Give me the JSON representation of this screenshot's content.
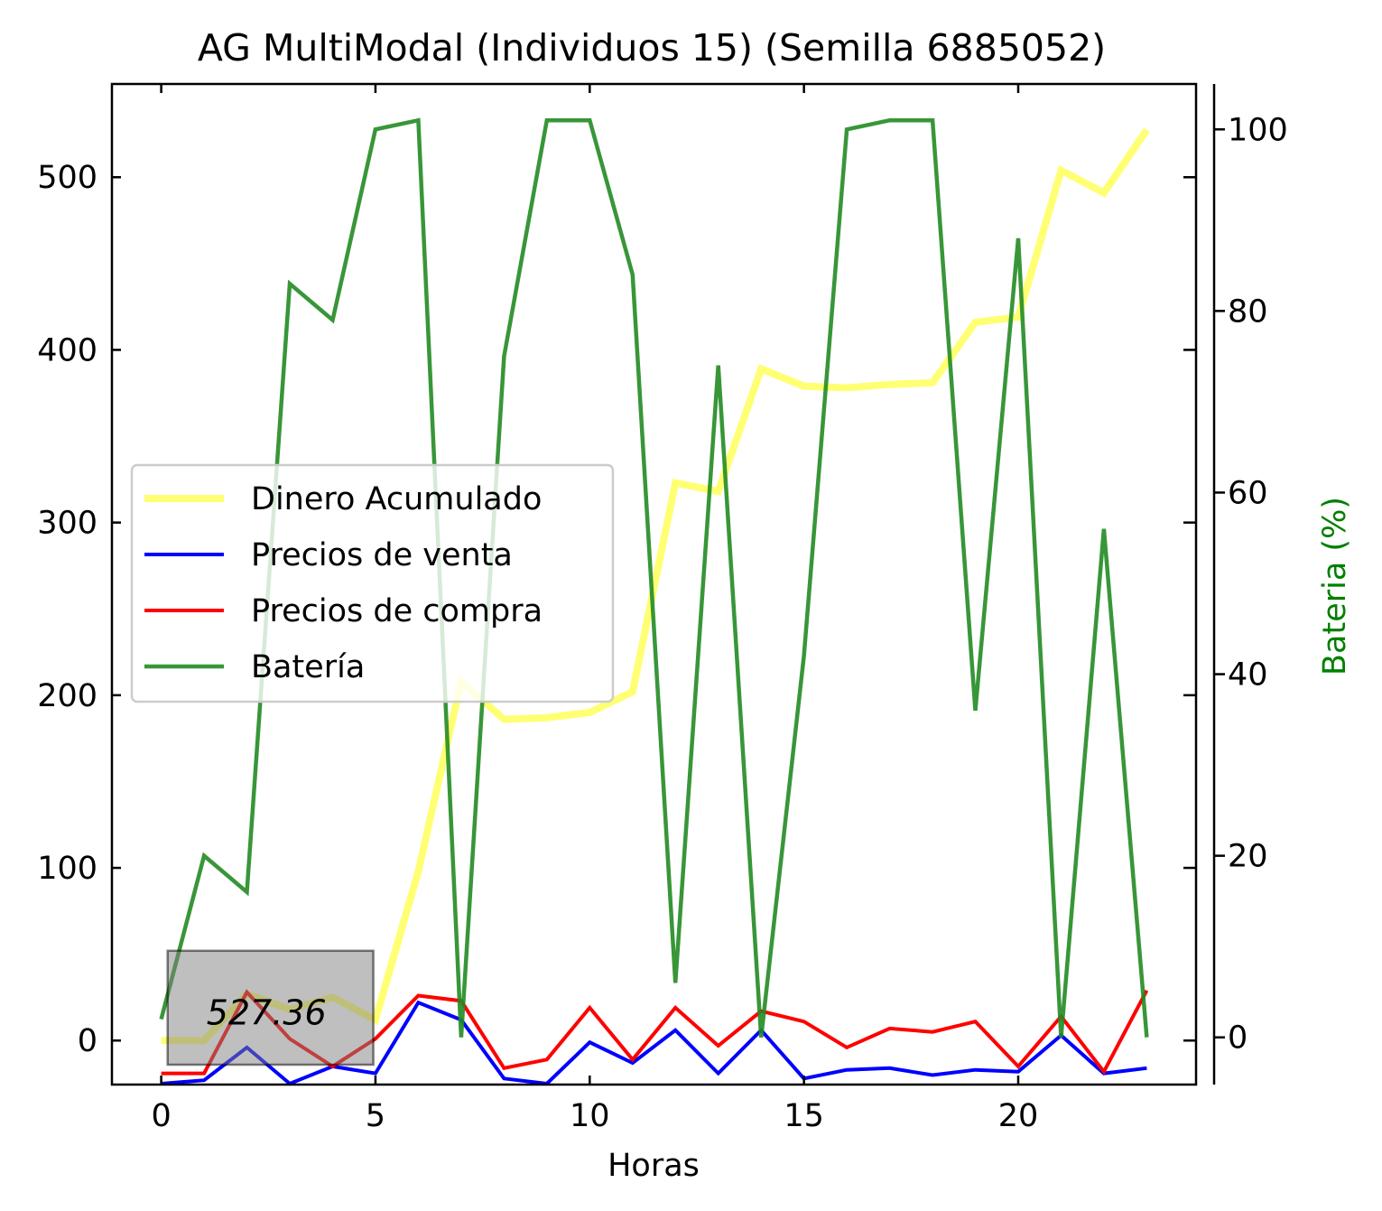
{
  "chart_data": {
    "type": "line",
    "title": "AG MultiModal (Individuos 15) (Semilla 6885052)",
    "xlabel": "Horas",
    "ylabel": "",
    "ylabel_right": "Bateria (%)",
    "x": [
      0,
      1,
      2,
      3,
      4,
      5,
      6,
      7,
      8,
      9,
      10,
      11,
      12,
      13,
      14,
      15,
      16,
      17,
      18,
      19,
      20,
      21,
      22,
      23
    ],
    "xlim": [
      -1.15,
      24.15
    ],
    "ylim": [
      -25.5,
      554
    ],
    "ylim_right": [
      -5.2,
      105
    ],
    "xticks": [
      0,
      5,
      10,
      15,
      20
    ],
    "yticks": [
      0,
      100,
      200,
      300,
      400,
      500
    ],
    "yticks_right": [
      0,
      20,
      40,
      60,
      80,
      100
    ],
    "grid": false,
    "legend_position": "center-left",
    "series": [
      {
        "name": "Dinero Acumulado",
        "color": "#ffff00",
        "axis": "left",
        "values": [
          0,
          0,
          27,
          18,
          25,
          12,
          98,
          208,
          186,
          187,
          190,
          202,
          323,
          318,
          389,
          379,
          378,
          380,
          381,
          416,
          419,
          504,
          491,
          527.36
        ]
      },
      {
        "name": "Precios de venta",
        "color": "#0000ff",
        "axis": "left",
        "values": [
          -25,
          -23,
          -4,
          -25,
          -15,
          -19,
          22,
          12,
          -22,
          -25,
          -1,
          -13,
          6,
          -19,
          6,
          -22,
          -17,
          -16,
          -20,
          -17,
          -18,
          3,
          -19,
          -16
        ]
      },
      {
        "name": "Precios de compra",
        "color": "#ff0000",
        "axis": "left",
        "values": [
          -19,
          -19,
          28,
          1,
          -15,
          1,
          26,
          23,
          -16,
          -11,
          19,
          -11,
          19,
          -3,
          17,
          11,
          -4,
          7,
          5,
          11,
          -15,
          14,
          -18,
          29
        ]
      },
      {
        "name": "Batería",
        "color": "#228b22",
        "axis": "right",
        "values": [
          2,
          20,
          16,
          83,
          79,
          100,
          101,
          0,
          75,
          101,
          101,
          84,
          6,
          74,
          0,
          42,
          100,
          101,
          101,
          36,
          88,
          0,
          56,
          0
        ]
      }
    ],
    "annotation": {
      "text": "527.36",
      "x_range": [
        0.15,
        4.95
      ],
      "y_range": [
        -14,
        52
      ]
    }
  }
}
